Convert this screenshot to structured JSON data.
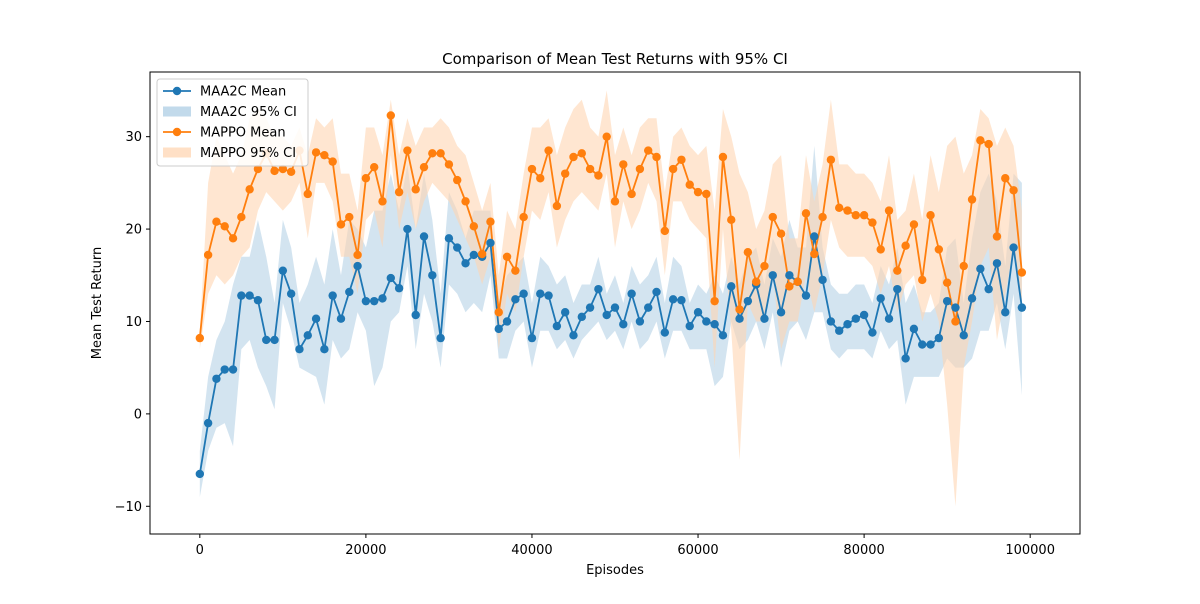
{
  "chart_data": {
    "type": "line",
    "title": "Comparison of Mean Test Returns with 95% CI",
    "xlabel": "Episodes",
    "ylabel": "Mean Test Return",
    "xlim": [
      -6000,
      106000
    ],
    "ylim": [
      -13,
      37
    ],
    "xticks": [
      0,
      20000,
      40000,
      60000,
      80000,
      100000
    ],
    "yticks": [
      -10,
      0,
      10,
      20,
      30
    ],
    "grid": false,
    "legend_position": "top-left",
    "legend": [
      {
        "label": "MAA2C Mean",
        "kind": "line",
        "series": 0
      },
      {
        "label": "MAA2C 95% CI",
        "kind": "band",
        "series": 0
      },
      {
        "label": "MAPPO Mean",
        "kind": "line",
        "series": 1
      },
      {
        "label": "MAPPO 95% CI",
        "kind": "band",
        "series": 1
      }
    ],
    "x": [
      0,
      1000,
      2000,
      3000,
      4000,
      5000,
      6000,
      7000,
      8000,
      9000,
      10000,
      11000,
      12000,
      13000,
      14000,
      15000,
      16000,
      17000,
      18000,
      19000,
      20000,
      21000,
      22000,
      23000,
      24000,
      25000,
      26000,
      27000,
      28000,
      29000,
      30000,
      31000,
      32000,
      33000,
      34000,
      35000,
      36000,
      37000,
      38000,
      39000,
      40000,
      41000,
      42000,
      43000,
      44000,
      45000,
      46000,
      47000,
      48000,
      49000,
      50000,
      51000,
      52000,
      53000,
      54000,
      55000,
      56000,
      57000,
      58000,
      59000,
      60000,
      61000,
      62000,
      63000,
      64000,
      65000,
      66000,
      67000,
      68000,
      69000,
      70000,
      71000,
      72000,
      73000,
      74000,
      75000,
      76000,
      77000,
      78000,
      79000,
      80000,
      81000,
      82000,
      83000,
      84000,
      85000,
      86000,
      87000,
      88000,
      89000,
      90000,
      91000,
      92000,
      93000,
      94000,
      95000,
      96000,
      97000,
      98000,
      99000
    ],
    "series": [
      {
        "name": "MAA2C",
        "color": "#1f77b4",
        "band_color": "#aecde4",
        "mean": [
          -6.5,
          -1,
          3.8,
          4.8,
          4.8,
          12.8,
          12.8,
          12.3,
          8,
          8,
          15.5,
          13,
          7,
          8.5,
          10.3,
          7,
          12.8,
          10.3,
          13.2,
          16,
          12.2,
          12.2,
          12.5,
          14.7,
          13.6,
          20,
          10.7,
          19.2,
          15,
          8.2,
          19,
          18,
          16.3,
          17.2,
          17,
          18.5,
          9.2,
          10,
          12.4,
          13,
          8.2,
          13,
          12.8,
          9.5,
          11,
          8.5,
          10.5,
          11.5,
          13.5,
          10.7,
          11.5,
          9.7,
          13,
          10,
          11.5,
          13.2,
          8.8,
          12.4,
          12.3,
          9.5,
          11,
          10,
          9.7,
          8.5,
          13.8,
          10.3,
          12.2,
          14,
          10.3,
          15,
          11,
          15,
          14.3,
          12.8,
          19.2,
          14.5,
          10,
          9,
          9.7,
          10.3,
          10.7,
          8.8,
          12.5,
          10.3,
          13.5,
          6,
          9.2,
          7.5,
          7.5,
          8.2,
          12.2,
          11.5,
          8.5,
          12.5,
          15.7,
          13.5,
          16.3,
          11,
          18,
          11.5
        ],
        "lower": [
          -9,
          -4,
          -1.5,
          -1,
          -3.5,
          7,
          8,
          5,
          3,
          0.5,
          12,
          9,
          5,
          4.5,
          4,
          1,
          8,
          6,
          7,
          11,
          9,
          3,
          5,
          10,
          11,
          16,
          7,
          13,
          10,
          5,
          14,
          13,
          11,
          12,
          11,
          15,
          6,
          6,
          9,
          10,
          5,
          9,
          9,
          7,
          8,
          6,
          8,
          9,
          10,
          8,
          9,
          7,
          10,
          7,
          8,
          10,
          6,
          9,
          9,
          7,
          7,
          7,
          3,
          4,
          10,
          7,
          8,
          10,
          7,
          11,
          5,
          9,
          10,
          8,
          11,
          11,
          7,
          6,
          7,
          7,
          7,
          6,
          9,
          7,
          8,
          1,
          4,
          4,
          4,
          4,
          6,
          5,
          5,
          6,
          9,
          9,
          12,
          7,
          13,
          2
        ],
        "upper": [
          -4,
          4,
          8,
          10,
          14,
          17,
          17,
          21,
          17,
          12,
          21,
          18,
          12,
          14,
          17,
          14,
          20,
          15,
          21,
          20,
          18,
          22,
          22,
          26,
          22,
          27,
          20,
          26,
          21,
          13,
          24,
          22,
          19,
          22,
          22,
          22,
          12,
          15,
          16,
          17,
          12,
          17,
          16,
          14,
          15,
          12,
          14,
          14,
          17,
          13,
          15,
          12,
          16,
          14,
          15,
          17,
          12,
          17,
          16,
          12,
          14,
          13,
          15,
          13,
          17,
          14,
          17,
          18,
          14,
          19,
          17,
          21,
          18,
          18,
          29,
          18,
          14,
          13,
          13,
          14,
          14,
          12,
          16,
          14,
          18,
          12,
          14,
          11,
          11,
          12,
          18,
          19,
          12,
          19,
          24,
          26,
          23,
          16,
          26,
          25
        ]
      },
      {
        "name": "MAPPO",
        "color": "#ff7f0e",
        "band_color": "#ffd6b3",
        "mean": [
          8.2,
          17.2,
          20.8,
          20.3,
          19,
          21.3,
          24.3,
          26.5,
          28.2,
          26.3,
          26.5,
          26.2,
          28.5,
          23.8,
          28.3,
          28,
          27.3,
          20.5,
          21.3,
          17.2,
          25.5,
          26.7,
          23,
          32.3,
          24,
          28.5,
          24.3,
          26.7,
          28.2,
          28.2,
          27,
          25.3,
          23,
          20.3,
          17.3,
          20.8,
          11,
          17,
          15.5,
          21.3,
          26.5,
          25.5,
          28.5,
          22.5,
          26,
          27.8,
          28.2,
          26.5,
          25.8,
          30,
          23,
          27,
          23.8,
          26.5,
          28.5,
          27.8,
          19.8,
          26.5,
          27.5,
          24.8,
          24,
          23.8,
          12.2,
          27.8,
          21,
          11.3,
          17.5,
          14.3,
          16,
          21.3,
          19.5,
          13.8,
          14.3,
          21.7,
          17.3,
          21.3,
          27.5,
          22.3,
          22,
          21.5,
          21.5,
          20.7,
          17.8,
          22,
          15.5,
          18.2,
          20.5,
          14.5,
          21.5,
          17.8,
          14.2,
          10,
          16,
          23.2,
          29.6,
          29.2,
          19.2,
          25.5,
          24.2,
          15.3
        ],
        "lower": [
          7,
          13,
          15,
          14,
          15,
          17,
          18,
          22,
          24,
          23,
          22,
          23,
          25,
          19,
          25,
          25,
          23,
          17,
          17,
          13,
          21,
          22,
          18,
          28,
          20,
          24,
          20,
          23,
          25,
          24,
          23,
          21,
          19,
          17,
          14,
          17,
          7,
          13,
          11,
          17,
          22,
          21,
          24,
          18,
          21,
          23,
          24,
          23,
          22,
          26,
          18,
          23,
          20,
          22,
          25,
          23,
          15,
          23,
          23,
          21,
          20,
          19,
          5,
          20,
          9,
          -5,
          12,
          10,
          10,
          15,
          7,
          10,
          10,
          15,
          11,
          15,
          21,
          18,
          17,
          17,
          17,
          16,
          13,
          16,
          11,
          14,
          15,
          10,
          13,
          10,
          1,
          -10,
          5,
          10,
          16,
          18,
          8,
          13,
          18,
          12
        ],
        "upper": [
          9,
          25,
          30,
          28,
          26,
          28,
          32,
          33,
          32,
          30,
          30,
          29,
          31,
          28,
          32,
          31,
          32,
          26,
          26,
          22,
          31,
          31,
          28,
          34,
          28,
          32,
          29,
          31,
          31,
          32,
          31,
          29,
          28,
          25,
          22,
          25,
          15,
          22,
          20,
          26,
          31,
          31,
          32,
          28,
          31,
          33,
          34,
          31,
          30,
          35,
          28,
          31,
          28,
          31,
          32,
          32,
          24,
          30,
          31,
          29,
          28,
          29,
          22,
          33,
          30,
          26,
          24,
          20,
          22,
          27,
          28,
          19,
          19,
          28,
          23,
          27,
          34,
          27,
          27,
          26,
          26,
          25,
          23,
          28,
          21,
          22,
          26,
          21,
          28,
          24,
          29,
          30,
          26,
          28,
          33,
          32,
          29,
          31,
          29,
          22
        ]
      }
    ]
  }
}
